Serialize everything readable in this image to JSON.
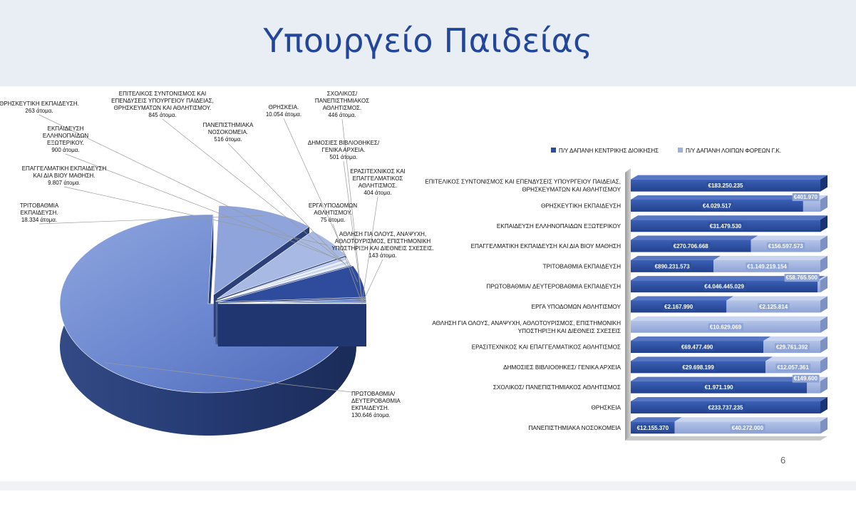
{
  "slide": {
    "title": "Υπουργείο Παιδείας",
    "page_number": "6"
  },
  "colors": {
    "central_series": "#2c4e9e",
    "other_series": "#9fb2de",
    "pie_main": "#6e8ad0",
    "pie_dark": "#2f4c9c",
    "pie_light": "#9db0db"
  },
  "chart_data": [
    {
      "type": "pie",
      "title": "",
      "unit": "άτομα",
      "slices": [
        {
          "label": "ΠΡΩΤΟΒΑΘΜΙΑ/ ΔΕΥΤΕΡΟΒΑΘΜΙΑ ΕΚΠΑΙΔΕΥΣΗ.",
          "value": 130646,
          "text": "130.646 άτομα."
        },
        {
          "label": "ΤΡΙΤΟΒΑΘΜΙΑ ΕΚΠΑΙΔΕΥΣΗ.",
          "value": 18334,
          "text": "18.334 άτομα."
        },
        {
          "label": "ΕΠΑΓΓΕΛΜΑΤΙΚΗ ΕΚΠΑΙΔΕΥΣΗ ΚΑΙ ΔΙΑ ΒΙΟΥ ΜΑΘΗΣΗ.",
          "value": 9807,
          "text": "9.807 άτομα."
        },
        {
          "label": "ΕΚΠΑΙΔΕΥΣΗ ΕΛΛΗΝΟΠΑΙΔΩΝ ΕΞΩΤΕΡΙΚΟΥ.",
          "value": 900,
          "text": "900 άτομα."
        },
        {
          "label": "ΘΡΗΣΚΕΥΤΙΚΗ ΕΚΠΑΙΔΕΥΣΗ.",
          "value": 263,
          "text": "263 άτομα."
        },
        {
          "label": "ΕΠΙΤΕΛΙΚΟΣ ΣΥΝΤΟΝΙΣΜΟΣ ΚΑΙ ΕΠΕΝΔΥΣΕΙΣ ΥΠΟΥΡΓΕΙΟΥ ΠΑΙΔΕΙΑΣ, ΘΡΗΣΚΕΥΜΑΤΩΝ ΚΑΙ ΑΘΛΗΤΙΣΜΟΥ.",
          "value": 845,
          "text": "845 άτομα."
        },
        {
          "label": "ΠΑΝΕΠΙΣΤΗΜΙΑΚΑ ΝΟΣΟΚΟΜΕΙΑ.",
          "value": 516,
          "text": "516 άτομα."
        },
        {
          "label": "ΘΡΗΣΚΕΙΑ.",
          "value": 10054,
          "text": "10.054 άτομα."
        },
        {
          "label": "ΣΧΟΛΙΚΟΣ/ ΠΑΝΕΠΙΣΤΗΜΙΑΚΟΣ ΑΘΛΗΤΙΣΜΟΣ.",
          "value": 446,
          "text": "446 άτομα."
        },
        {
          "label": "ΔΗΜΟΣΙΕΣ ΒΙΒΛΙΟΘΗΚΕΣ/ ΓΕΝΙΚΑ ΑΡΧΕΙΑ.",
          "value": 501,
          "text": "501 άτομα."
        },
        {
          "label": "ΕΡΑΣΙΤΕΧΝΙΚΟΣ ΚΑΙ ΕΠΑΓΓΕΛΜΑΤΙΚΟΣ ΑΘΛΗΤΙΣΜΟΣ.",
          "value": 404,
          "text": "404 άτομα."
        },
        {
          "label": "ΕΡΓΑ ΥΠΟΔΟΜΩΝ ΑΘΛΗΤΙΣΜΟΥ.",
          "value": 75,
          "text": "75 άτομα."
        },
        {
          "label": "ΑΘΛΗΣΗ ΓΙΑ ΟΛΟΥΣ, ΑΝΑΨΥΧΗ, ΑΘΛΟΤΟΥΡΙΣΜΟΣ, ΕΠΙΣΤΗΜΟΝΙΚΗ ΥΠΟΣΤΗΡΙΞΗ ΚΑΙ ΔΙΕΘΝΕΙΣ ΣΧΕΣΕΙΣ.",
          "value": 143,
          "text": "143 άτομα."
        }
      ]
    },
    {
      "type": "bar",
      "orientation": "horizontal",
      "stacking": "percent",
      "legend_position": "top",
      "currency": "€",
      "series": [
        {
          "name": "Π/Υ ΔΑΠΑΝΗ ΚΕΝΤΡΙΚΗΣ ΔΙΟΙΚΗΣΗΣ"
        },
        {
          "name": "Π/Υ ΔΑΠΑΝΗ ΛΟΙΠΩΝ ΦΟΡΕΩΝ Γ.Κ."
        }
      ],
      "rows": [
        {
          "category": "ΕΠΙΤΕΛΙΚΟΣ ΣΥΝΤΟΝΙΣΜΟΣ ΚΑΙ ΕΠΕΝΔΥΣΕΙΣ ΥΠΟΥΡΓΕΙΟΥ ΠΑΙΔΕΙΑΣ, ΘΡΗΣΚΕΥΜΑΤΩΝ ΚΑΙ ΑΘΛΗΤΙΣΜΟΥ",
          "central": 183250235,
          "central_label": "€183.250.235",
          "other": null,
          "other_label": ""
        },
        {
          "category": "ΘΡΗΣΚΕΥΤΙΚΗ ΕΚΠΑΙΔΕΥΣΗ",
          "central": 4029517,
          "central_label": "€4.029.517",
          "other": 401970,
          "other_label": "€401.970"
        },
        {
          "category": "ΕΚΠΑΙΔΕΥΣΗ ΕΛΛΗΝΟΠΑΙΔΩΝ ΕΞΩΤΕΡΙΚΟΥ",
          "central": 31479530,
          "central_label": "€31.479.530",
          "other": null,
          "other_label": ""
        },
        {
          "category": "ΕΠΑΓΓΕΛΜΑΤΙΚΗ ΕΚΠΑΙΔΕΥΣΗ ΚΑΙ ΔΙΑ ΒΙΟΥ ΜΑΘΗΣΗ",
          "central": 270706668,
          "central_label": "€270.706.668",
          "other": 156597573,
          "other_label": "€156.597.573"
        },
        {
          "category": "ΤΡΙΤΟΒΑΘΜΙΑ ΕΚΠΑΙΔΕΥΣΗ",
          "central": 890231573,
          "central_label": "€890.231.573",
          "other": 1149219154,
          "other_label": "€1.149.219.154"
        },
        {
          "category": "ΠΡΩΤΟΒΑΘΜΙΑ/ ΔΕΥΤΕΡΟΒΑΘΜΙΑ ΕΚΠΑΙΔΕΥΣΗ",
          "central": 4046445029,
          "central_label": "€4.046.445.029",
          "other": 58765500,
          "other_label": "€58.765.500"
        },
        {
          "category": "ΕΡΓΑ ΥΠΟΔΟΜΩΝ ΑΘΛΗΤΙΣΜΟΥ",
          "central": 2167990,
          "central_label": "€2.167.990",
          "other": 2125814,
          "other_label": "€2.125.814"
        },
        {
          "category": "ΑΘΛΗΣΗ ΓΙΑ ΟΛΟΥΣ, ΑΝΑΨΥΧΗ, ΑΘΛΟΤΟΥΡΙΣΜΟΣ, ΕΠΙΣΤΗΜΟΝΙΚΗ ΥΠΟΣΤΗΡΙΞΗ ΚΑΙ ΔΙΕΘΝΕΙΣ ΣΧΕΣΕΙΣ",
          "central": null,
          "central_label": "",
          "other": 10629069,
          "other_label": "€10.629.069"
        },
        {
          "category": "ΕΡΑΣΙΤΕΧΝΙΚΟΣ ΚΑΙ ΕΠΑΓΓΕΛΜΑΤΙΚΟΣ ΑΘΛΗΤΙΣΜΟΣ",
          "central": 69477490,
          "central_label": "€69.477.490",
          "other": 29761392,
          "other_label": "€29.761.392"
        },
        {
          "category": "ΔΗΜΟΣΙΕΣ ΒΙΒΛΙΟΘΗΚΕΣ/ ΓΕΝΙΚΑ ΑΡΧΕΙΑ",
          "central": 29698199,
          "central_label": "€29.698.199",
          "other": 12057361,
          "other_label": "€12.057.361"
        },
        {
          "category": "ΣΧΟΛΙΚΟΣ/ ΠΑΝΕΠΙΣΤΗΜΙΑΚΟΣ ΑΘΛΗΤΙΣΜΟΣ",
          "central": 1971190,
          "central_label": "€1.971.190",
          "other": 149600,
          "other_label": "€149.600"
        },
        {
          "category": "ΘΡΗΣΚΕΙΑ",
          "central": 233737235,
          "central_label": "€233.737.235",
          "other": null,
          "other_label": ""
        },
        {
          "category": "ΠΑΝΕΠΙΣΤΗΜΙΑΚΑ ΝΟΣΟΚΟΜΕΙΑ",
          "central": 12155370,
          "central_label": "€12.155.370",
          "other": 40272000,
          "other_label": "€40.272.000"
        }
      ]
    }
  ]
}
